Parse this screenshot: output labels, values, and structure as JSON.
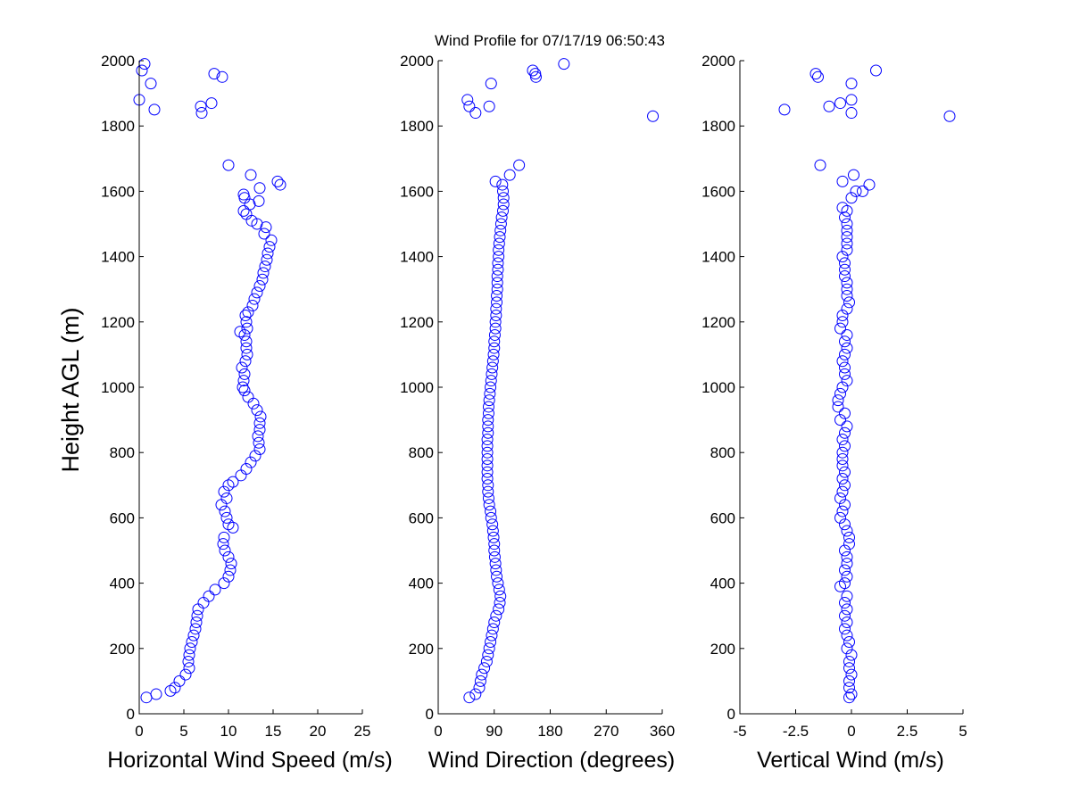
{
  "chart_data": {
    "type": "scatter",
    "title": "Wind Profile for  07/17/19 06:50:43",
    "ylabel": "Height AGL (m)",
    "colors": {
      "marker": "#0000ff",
      "axes": "#000000",
      "background": "#ffffff"
    },
    "grid": false,
    "legend": "none",
    "panels": [
      {
        "xlabel": "Horizontal Wind Speed (m/s)",
        "xlim": [
          0,
          25
        ],
        "ylim": [
          0,
          2000
        ],
        "xticks": [
          0,
          5,
          10,
          15,
          20,
          25
        ],
        "xtick_labels": [
          "0",
          "5",
          "10",
          "15",
          "20",
          "25"
        ],
        "yticks": [
          0,
          200,
          400,
          600,
          800,
          1000,
          1200,
          1400,
          1600,
          1800,
          2000
        ],
        "ytick_labels": [
          "0",
          "200",
          "400",
          "600",
          "800",
          "1000",
          "1200",
          "1400",
          "1600",
          "1800",
          "2000"
        ],
        "points": [
          [
            0.8,
            50
          ],
          [
            1.9,
            60
          ],
          [
            3.5,
            70
          ],
          [
            4,
            80
          ],
          [
            4.5,
            100
          ],
          [
            5.2,
            120
          ],
          [
            5.6,
            140
          ],
          [
            5.5,
            160
          ],
          [
            5.6,
            180
          ],
          [
            5.7,
            200
          ],
          [
            5.9,
            220
          ],
          [
            6.1,
            240
          ],
          [
            6.3,
            260
          ],
          [
            6.4,
            280
          ],
          [
            6.5,
            300
          ],
          [
            6.6,
            320
          ],
          [
            7.2,
            340
          ],
          [
            7.8,
            360
          ],
          [
            8.5,
            380
          ],
          [
            9.5,
            400
          ],
          [
            10,
            420
          ],
          [
            10.2,
            440
          ],
          [
            10.3,
            460
          ],
          [
            10,
            480
          ],
          [
            9.6,
            500
          ],
          [
            9.4,
            520
          ],
          [
            9.5,
            540
          ],
          [
            10.5,
            570
          ],
          [
            10,
            580
          ],
          [
            9.8,
            600
          ],
          [
            9.6,
            620
          ],
          [
            9.2,
            640
          ],
          [
            9.8,
            660
          ],
          [
            9.5,
            680
          ],
          [
            10,
            700
          ],
          [
            10.5,
            710
          ],
          [
            11.4,
            730
          ],
          [
            12,
            750
          ],
          [
            12.5,
            770
          ],
          [
            13,
            790
          ],
          [
            13.5,
            810
          ],
          [
            13.4,
            830
          ],
          [
            13.3,
            850
          ],
          [
            13.5,
            870
          ],
          [
            13.5,
            890
          ],
          [
            13.6,
            910
          ],
          [
            13.2,
            930
          ],
          [
            12.8,
            950
          ],
          [
            12.2,
            970
          ],
          [
            11.8,
            990
          ],
          [
            11.6,
            1000
          ],
          [
            11.7,
            1020
          ],
          [
            11.8,
            1040
          ],
          [
            11.5,
            1060
          ],
          [
            11.9,
            1080
          ],
          [
            12.1,
            1100
          ],
          [
            12,
            1120
          ],
          [
            12,
            1140
          ],
          [
            11.8,
            1160
          ],
          [
            11.3,
            1170
          ],
          [
            12.1,
            1180
          ],
          [
            12,
            1200
          ],
          [
            11.9,
            1220
          ],
          [
            12.2,
            1230
          ],
          [
            12.7,
            1250
          ],
          [
            12.9,
            1270
          ],
          [
            13.2,
            1290
          ],
          [
            13.5,
            1310
          ],
          [
            13.8,
            1330
          ],
          [
            13.9,
            1350
          ],
          [
            14.1,
            1370
          ],
          [
            14.3,
            1390
          ],
          [
            14.4,
            1410
          ],
          [
            14.6,
            1430
          ],
          [
            14.8,
            1450
          ],
          [
            14,
            1470
          ],
          [
            14.2,
            1490
          ],
          [
            13.2,
            1500
          ],
          [
            12.6,
            1510
          ],
          [
            12,
            1530
          ],
          [
            11.7,
            1540
          ],
          [
            12.4,
            1560
          ],
          [
            13.4,
            1570
          ],
          [
            11.8,
            1580
          ],
          [
            11.7,
            1590
          ],
          [
            13.5,
            1610
          ],
          [
            15.8,
            1620
          ],
          [
            15.5,
            1630
          ],
          [
            12.5,
            1650
          ],
          [
            10,
            1680
          ],
          [
            7,
            1840
          ],
          [
            1.7,
            1850
          ],
          [
            6.9,
            1860
          ],
          [
            0,
            1880
          ],
          [
            8.1,
            1870
          ],
          [
            1.3,
            1930
          ],
          [
            9.3,
            1950
          ],
          [
            0.3,
            1970
          ],
          [
            8.4,
            1960
          ],
          [
            0.6,
            1990
          ]
        ]
      },
      {
        "xlabel": "Wind Direction (degrees)",
        "xlim": [
          0,
          360
        ],
        "ylim": [
          0,
          2000
        ],
        "xticks": [
          0,
          90,
          180,
          270,
          360
        ],
        "xtick_labels": [
          "0",
          "90",
          "180",
          "270",
          "360"
        ],
        "yticks": [
          0,
          200,
          400,
          600,
          800,
          1000,
          1200,
          1400,
          1600,
          1800,
          2000
        ],
        "ytick_labels": [
          "0",
          "200",
          "400",
          "600",
          "800",
          "1000",
          "1200",
          "1400",
          "1600",
          "1800",
          "2000"
        ],
        "points": [
          [
            50,
            50
          ],
          [
            60,
            60
          ],
          [
            66,
            80
          ],
          [
            68,
            100
          ],
          [
            70,
            120
          ],
          [
            74,
            140
          ],
          [
            78,
            160
          ],
          [
            80,
            180
          ],
          [
            82,
            200
          ],
          [
            84,
            220
          ],
          [
            86,
            240
          ],
          [
            88,
            260
          ],
          [
            90,
            280
          ],
          [
            93,
            300
          ],
          [
            97,
            320
          ],
          [
            99,
            340
          ],
          [
            100,
            360
          ],
          [
            98,
            380
          ],
          [
            96,
            400
          ],
          [
            94,
            420
          ],
          [
            93,
            440
          ],
          [
            92,
            460
          ],
          [
            91,
            480
          ],
          [
            90,
            500
          ],
          [
            90,
            520
          ],
          [
            89,
            540
          ],
          [
            88,
            560
          ],
          [
            87,
            580
          ],
          [
            85,
            600
          ],
          [
            84,
            620
          ],
          [
            82,
            640
          ],
          [
            81,
            660
          ],
          [
            80,
            680
          ],
          [
            80,
            700
          ],
          [
            79,
            720
          ],
          [
            79,
            740
          ],
          [
            79,
            760
          ],
          [
            79,
            780
          ],
          [
            79,
            800
          ],
          [
            79,
            820
          ],
          [
            79,
            840
          ],
          [
            80,
            860
          ],
          [
            80,
            880
          ],
          [
            80,
            900
          ],
          [
            81,
            920
          ],
          [
            81,
            940
          ],
          [
            82,
            960
          ],
          [
            83,
            980
          ],
          [
            84,
            1000
          ],
          [
            85,
            1020
          ],
          [
            86,
            1040
          ],
          [
            87,
            1060
          ],
          [
            88,
            1080
          ],
          [
            89,
            1100
          ],
          [
            90,
            1120
          ],
          [
            90,
            1140
          ],
          [
            91,
            1160
          ],
          [
            92,
            1180
          ],
          [
            92,
            1200
          ],
          [
            93,
            1220
          ],
          [
            93,
            1240
          ],
          [
            94,
            1260
          ],
          [
            94,
            1280
          ],
          [
            95,
            1300
          ],
          [
            95,
            1320
          ],
          [
            95,
            1340
          ],
          [
            96,
            1360
          ],
          [
            96,
            1380
          ],
          [
            97,
            1400
          ],
          [
            97,
            1420
          ],
          [
            98,
            1440
          ],
          [
            99,
            1460
          ],
          [
            100,
            1480
          ],
          [
            101,
            1500
          ],
          [
            102,
            1520
          ],
          [
            104,
            1540
          ],
          [
            105,
            1560
          ],
          [
            105,
            1580
          ],
          [
            104,
            1600
          ],
          [
            103,
            1620
          ],
          [
            92,
            1630
          ],
          [
            115,
            1650
          ],
          [
            130,
            1680
          ],
          [
            47,
            1880
          ],
          [
            50,
            1860
          ],
          [
            60,
            1840
          ],
          [
            82,
            1860
          ],
          [
            345,
            1830
          ],
          [
            85,
            1930
          ],
          [
            152,
            1970
          ],
          [
            156,
            1960
          ],
          [
            157,
            1950
          ],
          [
            202,
            1990
          ]
        ]
      },
      {
        "xlabel": "Vertical Wind (m/s)",
        "xlim": [
          -5,
          5
        ],
        "ylim": [
          0,
          2000
        ],
        "xticks": [
          -5,
          -2.5,
          0,
          2.5,
          5
        ],
        "xtick_labels": [
          "-5",
          "-2.5",
          "0",
          "2.5",
          "5"
        ],
        "yticks": [
          0,
          200,
          400,
          600,
          800,
          1000,
          1200,
          1400,
          1600,
          1800,
          2000
        ],
        "ytick_labels": [
          "0",
          "200",
          "400",
          "600",
          "800",
          "1000",
          "1200",
          "1400",
          "1600",
          "1800",
          "2000"
        ],
        "points": [
          [
            -0.1,
            50
          ],
          [
            0,
            60
          ],
          [
            -0.1,
            80
          ],
          [
            -0.1,
            100
          ],
          [
            0,
            120
          ],
          [
            -0.1,
            140
          ],
          [
            -0.1,
            160
          ],
          [
            0,
            180
          ],
          [
            -0.2,
            200
          ],
          [
            -0.1,
            220
          ],
          [
            -0.2,
            240
          ],
          [
            -0.3,
            260
          ],
          [
            -0.2,
            280
          ],
          [
            -0.3,
            300
          ],
          [
            -0.2,
            320
          ],
          [
            -0.3,
            340
          ],
          [
            -0.2,
            360
          ],
          [
            -0.5,
            390
          ],
          [
            -0.3,
            400
          ],
          [
            -0.2,
            420
          ],
          [
            -0.3,
            440
          ],
          [
            -0.2,
            460
          ],
          [
            -0.2,
            480
          ],
          [
            -0.3,
            500
          ],
          [
            -0.1,
            520
          ],
          [
            -0.1,
            540
          ],
          [
            -0.2,
            560
          ],
          [
            -0.3,
            580
          ],
          [
            -0.5,
            600
          ],
          [
            -0.4,
            620
          ],
          [
            -0.3,
            640
          ],
          [
            -0.5,
            660
          ],
          [
            -0.4,
            680
          ],
          [
            -0.3,
            700
          ],
          [
            -0.4,
            720
          ],
          [
            -0.3,
            740
          ],
          [
            -0.4,
            760
          ],
          [
            -0.4,
            780
          ],
          [
            -0.4,
            800
          ],
          [
            -0.3,
            820
          ],
          [
            -0.4,
            840
          ],
          [
            -0.3,
            860
          ],
          [
            -0.2,
            880
          ],
          [
            -0.5,
            900
          ],
          [
            -0.3,
            920
          ],
          [
            -0.6,
            940
          ],
          [
            -0.6,
            960
          ],
          [
            -0.5,
            980
          ],
          [
            -0.4,
            1000
          ],
          [
            -0.2,
            1020
          ],
          [
            -0.3,
            1040
          ],
          [
            -0.3,
            1060
          ],
          [
            -0.4,
            1080
          ],
          [
            -0.3,
            1100
          ],
          [
            -0.2,
            1120
          ],
          [
            -0.3,
            1140
          ],
          [
            -0.2,
            1160
          ],
          [
            -0.5,
            1180
          ],
          [
            -0.4,
            1200
          ],
          [
            -0.4,
            1220
          ],
          [
            -0.2,
            1240
          ],
          [
            -0.1,
            1260
          ],
          [
            -0.2,
            1280
          ],
          [
            -0.2,
            1300
          ],
          [
            -0.2,
            1320
          ],
          [
            -0.3,
            1340
          ],
          [
            -0.3,
            1360
          ],
          [
            -0.3,
            1380
          ],
          [
            -0.4,
            1400
          ],
          [
            -0.2,
            1420
          ],
          [
            -0.2,
            1440
          ],
          [
            -0.2,
            1460
          ],
          [
            -0.2,
            1480
          ],
          [
            -0.2,
            1500
          ],
          [
            -0.3,
            1520
          ],
          [
            -0.2,
            1540
          ],
          [
            -0.4,
            1550
          ],
          [
            0,
            1580
          ],
          [
            0.2,
            1600
          ],
          [
            0.5,
            1600
          ],
          [
            0.8,
            1620
          ],
          [
            -0.4,
            1630
          ],
          [
            0.1,
            1650
          ],
          [
            -1.4,
            1680
          ],
          [
            -3,
            1850
          ],
          [
            -1,
            1860
          ],
          [
            -0.5,
            1870
          ],
          [
            0,
            1880
          ],
          [
            0,
            1840
          ],
          [
            4.4,
            1830
          ],
          [
            0,
            1930
          ],
          [
            -1.6,
            1960
          ],
          [
            -1.5,
            1950
          ],
          [
            1.1,
            1970
          ]
        ]
      }
    ]
  }
}
